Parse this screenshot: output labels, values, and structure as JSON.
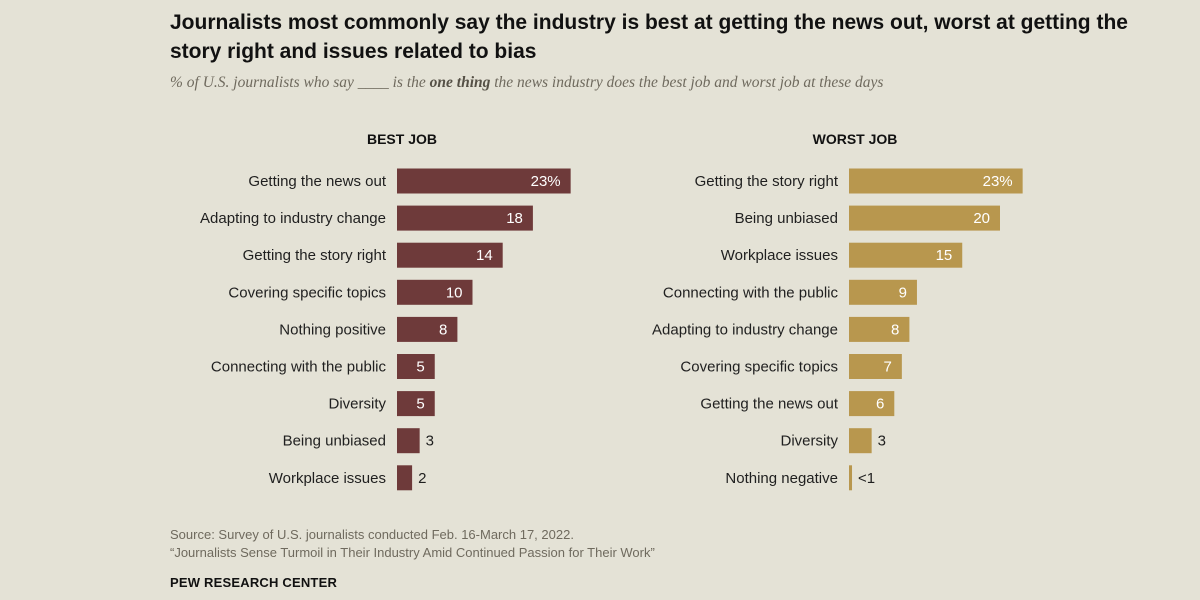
{
  "title": "Journalists most commonly say the industry is best at getting the news out, worst at getting the story right and issues related to bias",
  "subtitle": {
    "before": "% of U.S. journalists who say ____ is the ",
    "emphasis": "one thing",
    "after": " the news industry does the best job and worst job at these days"
  },
  "source": "Source: Survey of U.S. journalists conducted Feb. 16-March 17, 2022.",
  "report": "“Journalists Sense Turmoil in Their Industry Amid Continued Passion for Their Work”",
  "brand": "PEW RESEARCH CENTER",
  "chart_data": [
    {
      "type": "bar",
      "orientation": "horizontal",
      "title": "BEST JOB",
      "color": "#6e3a3a",
      "categories": [
        "Getting the news out",
        "Adapting to industry change",
        "Getting the story right",
        "Covering specific topics",
        "Nothing positive",
        "Connecting with the public",
        "Diversity",
        "Being unbiased",
        "Workplace issues"
      ],
      "values": [
        23,
        18,
        14,
        10,
        8,
        5,
        5,
        3,
        2
      ],
      "labels": [
        "23%",
        "18",
        "14",
        "10",
        "8",
        "5",
        "5",
        "3",
        "2"
      ]
    },
    {
      "type": "bar",
      "orientation": "horizontal",
      "title": "WORST JOB",
      "color": "#b8974e",
      "categories": [
        "Getting the story right",
        "Being unbiased",
        "Workplace issues",
        "Connecting with the public",
        "Adapting to industry change",
        "Covering specific topics",
        "Getting the news out",
        "Diversity",
        "Nothing negative"
      ],
      "values": [
        23,
        20,
        15,
        9,
        8,
        7,
        6,
        3,
        0.4
      ],
      "labels": [
        "23%",
        "20",
        "15",
        "9",
        "8",
        "7",
        "6",
        "3",
        "<1"
      ]
    }
  ]
}
